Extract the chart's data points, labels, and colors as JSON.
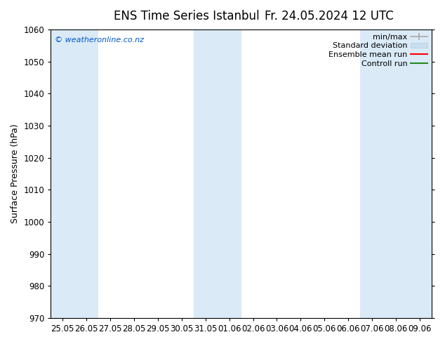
{
  "title": "ENS Time Series Istanbul",
  "title2": "Fr. 24.05.2024 12 UTC",
  "ylabel": "Surface Pressure (hPa)",
  "ylim": [
    970,
    1060
  ],
  "yticks": [
    970,
    980,
    990,
    1000,
    1010,
    1020,
    1030,
    1040,
    1050,
    1060
  ],
  "x_labels": [
    "25.05",
    "26.05",
    "27.05",
    "28.05",
    "29.05",
    "30.05",
    "31.05",
    "01.06",
    "02.06",
    "03.06",
    "04.06",
    "05.06",
    "06.06",
    "07.06",
    "08.06",
    "09.06"
  ],
  "copyright_text": "© weatheronline.co.nz",
  "copyright_color": "#0055cc",
  "shaded_indices": [
    0,
    1,
    6,
    7,
    13,
    14,
    15
  ],
  "shaded_color": "#daeaf7",
  "bg_color": "#ffffff",
  "legend_labels": [
    "min/max",
    "Standard deviation",
    "Ensemble mean run",
    "Controll run"
  ],
  "legend_colors": [
    "#999999",
    "#c5dff0",
    "#ff0000",
    "#007700"
  ],
  "title_fontsize": 12,
  "axis_fontsize": 9,
  "tick_fontsize": 8.5,
  "legend_fontsize": 8
}
